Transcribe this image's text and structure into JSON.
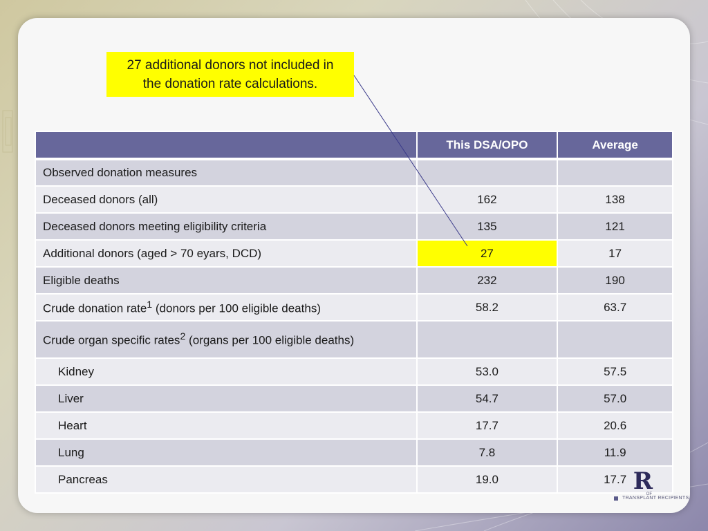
{
  "callout": {
    "line1": "27 additional donors not included in",
    "line2": "the donation rate calculations."
  },
  "table": {
    "headers": [
      "",
      "This DSA/OPO",
      "Average"
    ],
    "rows": [
      {
        "label": "Observed donation measures",
        "dsa": "",
        "avg": ""
      },
      {
        "label": "Deceased donors (all)",
        "dsa": "162",
        "avg": "138"
      },
      {
        "label": "Deceased donors meeting eligibility criteria",
        "dsa": "135",
        "avg": "121"
      },
      {
        "label": "Additional donors (aged > 70 eyars, DCD)",
        "dsa": "27",
        "avg": "17"
      },
      {
        "label": "Eligible deaths",
        "dsa": "232",
        "avg": "190"
      },
      {
        "label_pre": "Crude donation rate",
        "label_sup": "1",
        "label_post": " (donors per 100 eligible deaths)",
        "dsa": "58.2",
        "avg": "63.7"
      },
      {
        "label_pre": "Crude organ specific rates",
        "label_sup": "2",
        "label_post": " (organs per 100 eligible deaths)",
        "dsa": "",
        "avg": ""
      },
      {
        "label": "Kidney",
        "dsa": "53.0",
        "avg": "57.5"
      },
      {
        "label": "Liver",
        "dsa": "54.7",
        "avg": "57.0"
      },
      {
        "label": "Heart",
        "dsa": "17.7",
        "avg": "20.6"
      },
      {
        "label": "Lung",
        "dsa": "7.8",
        "avg": "11.9"
      },
      {
        "label": "Pancreas",
        "dsa": "19.0",
        "avg": "17.7"
      }
    ]
  },
  "logo": {
    "letter": "R",
    "of": "OF",
    "subtitle": "TRANSPLANT RECIPIENTS"
  },
  "colors": {
    "header_bg": "#67679b",
    "highlight": "#ffff00"
  }
}
